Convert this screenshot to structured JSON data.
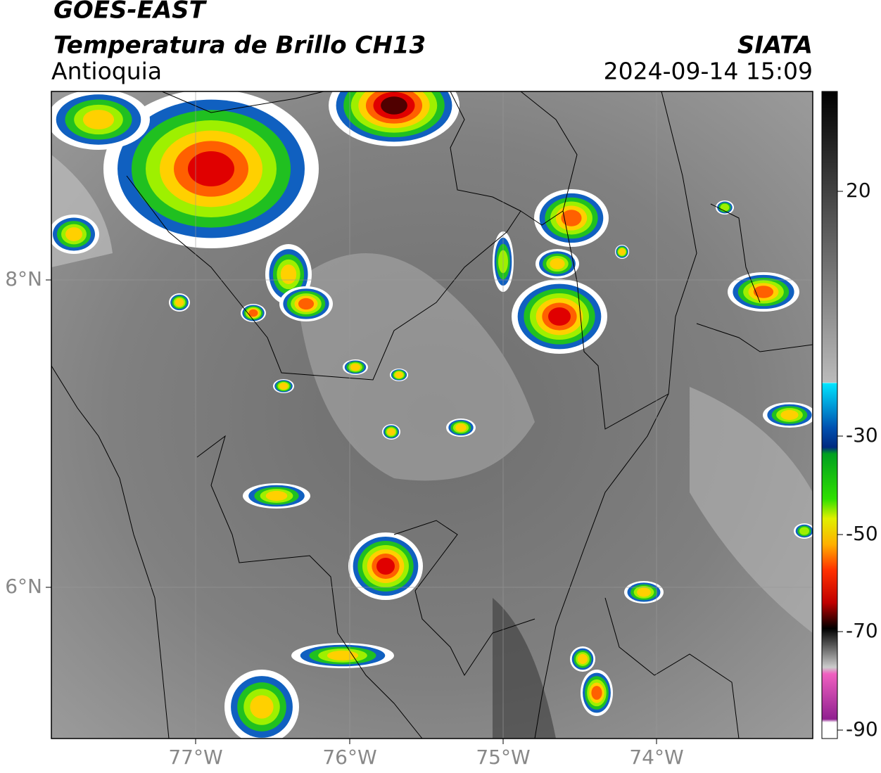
{
  "header": {
    "satellite": "GOES-EAST",
    "product": "Temperatura de Brillo CH13",
    "region": "Antioquia",
    "organization": "SIATA",
    "timestamp": "2024-09-14 15:09"
  },
  "map": {
    "lon_labels": [
      "77°W",
      "76°W",
      "75°W",
      "74°W"
    ],
    "lat_labels": [
      "8°N",
      "6°N"
    ]
  },
  "colorbar": {
    "labels": [
      "20",
      "-30",
      "-50",
      "-70",
      "-90"
    ]
  }
}
